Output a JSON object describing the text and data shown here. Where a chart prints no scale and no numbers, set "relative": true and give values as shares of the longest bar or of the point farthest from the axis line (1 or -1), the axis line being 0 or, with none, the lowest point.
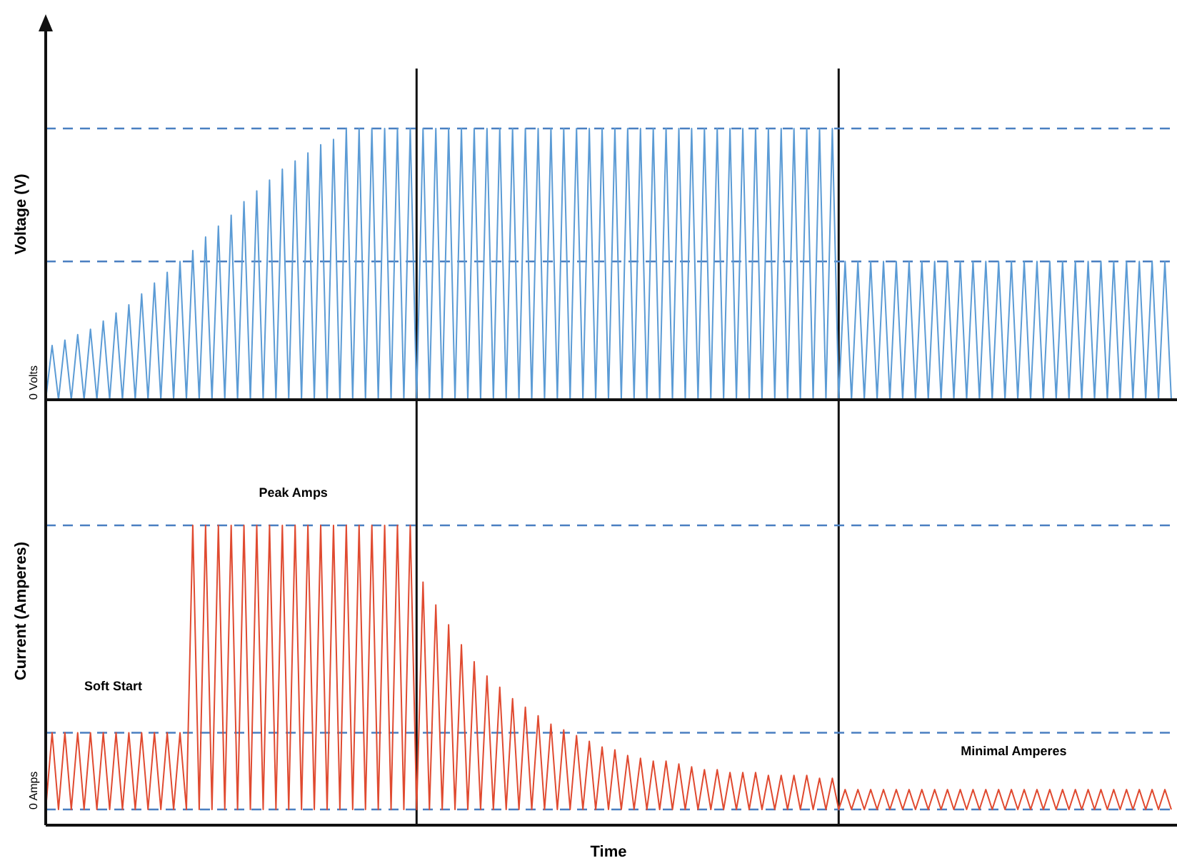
{
  "chart_data": [
    {
      "type": "line",
      "ylabel": "Voltage (V)",
      "relative": true,
      "categories": [
        null,
        null,
        null,
        null,
        null,
        null,
        null,
        null,
        null,
        null,
        null,
        null,
        null,
        null,
        null,
        null,
        null,
        null,
        null,
        null,
        null,
        null,
        null,
        null,
        null,
        null,
        null,
        null,
        null,
        null,
        null,
        null,
        null,
        null,
        null,
        null,
        null,
        null,
        null,
        null,
        null,
        null,
        null,
        null,
        null,
        null,
        null,
        null,
        null,
        null,
        null,
        null,
        null,
        null,
        null,
        null,
        null,
        null,
        null,
        null,
        null,
        null,
        null,
        null,
        null,
        null,
        null,
        null,
        null,
        null,
        null,
        null,
        null,
        null,
        null,
        null,
        null,
        null,
        null,
        null,
        null,
        null,
        null,
        null,
        null,
        null,
        null,
        null,
        null,
        null,
        null,
        null,
        null,
        null,
        null,
        null,
        null,
        null,
        null,
        null,
        null,
        null,
        null,
        null,
        null,
        null,
        null,
        null,
        null,
        null,
        null,
        null,
        null,
        null,
        null,
        null,
        null,
        null,
        null,
        null,
        null,
        null,
        null,
        null,
        null,
        null,
        null,
        null,
        null,
        null,
        null,
        null,
        null,
        null,
        null,
        null,
        null,
        null,
        null,
        null,
        null,
        null,
        null,
        null,
        null,
        null,
        null,
        null,
        null,
        null,
        null,
        null,
        null,
        null,
        null,
        null,
        null,
        null,
        null,
        null,
        null,
        null,
        null,
        null,
        null,
        null,
        null,
        null,
        null,
        null,
        null,
        null,
        null,
        null,
        null,
        null,
        null
      ],
      "series": [
        {
          "color": "#5b9bd5",
          "values": [
            0,
            0.2,
            0,
            0.22,
            0,
            0.24,
            0,
            0.26,
            0,
            0.29,
            0,
            0.32,
            0,
            0.35,
            0,
            0.39,
            0,
            0.43,
            0,
            0.47,
            0,
            0.51,
            0,
            0.55,
            0,
            0.6,
            0,
            0.64,
            0,
            0.68,
            0,
            0.73,
            0,
            0.77,
            0,
            0.81,
            0,
            0.85,
            0,
            0.88,
            0,
            0.91,
            0,
            0.94,
            0,
            0.96,
            0,
            1,
            0,
            1,
            0,
            1,
            0,
            1,
            0,
            1,
            0,
            1,
            0,
            1,
            0,
            1,
            0,
            1,
            0,
            1,
            0,
            1,
            0,
            1,
            0,
            1,
            0,
            1,
            0,
            1,
            0,
            1,
            0,
            1,
            0,
            1,
            0,
            1,
            0,
            1,
            0,
            1,
            0,
            1,
            0,
            1,
            0,
            1,
            0,
            1,
            0,
            1,
            0,
            1,
            0,
            1,
            0,
            1,
            0,
            1,
            0,
            1,
            0,
            1,
            0,
            1,
            0,
            1,
            0,
            1,
            0,
            1,
            0,
            1,
            0,
            1,
            0,
            1,
            0,
            0.51,
            0,
            0.51,
            0,
            0.51,
            0,
            0.51,
            0,
            0.51,
            0,
            0.51,
            0,
            0.51,
            0,
            0.51,
            0,
            0.51,
            0,
            0.51,
            0,
            0.51,
            0,
            0.51,
            0,
            0.51,
            0,
            0.51,
            0,
            0.51,
            0,
            0.51,
            0,
            0.51,
            0,
            0.51,
            0,
            0.51,
            0,
            0.51,
            0,
            0.51,
            0,
            0.51,
            0,
            0.51,
            0,
            0.51,
            0,
            0.51,
            0,
            0.51,
            0
          ]
        }
      ],
      "ref_lines": [
        {
          "axis": "y",
          "value": 1,
          "color": "#4a7fc1",
          "line_style": "dashed"
        },
        {
          "axis": "y",
          "value": 0.51,
          "color": "#4a7fc1",
          "line_style": "dashed"
        }
      ],
      "annotations": [
        "0 Volts"
      ]
    },
    {
      "type": "line",
      "ylabel": "Current (Amperes)",
      "xlabel": "Time",
      "relative": true,
      "categories": [
        null,
        null,
        null,
        null,
        null,
        null,
        null,
        null,
        null,
        null,
        null,
        null,
        null,
        null,
        null,
        null,
        null,
        null,
        null,
        null,
        null,
        null,
        null,
        null,
        null,
        null,
        null,
        null,
        null,
        null,
        null,
        null,
        null,
        null,
        null,
        null,
        null,
        null,
        null,
        null,
        null,
        null,
        null,
        null,
        null,
        null,
        null,
        null,
        null,
        null,
        null,
        null,
        null,
        null,
        null,
        null,
        null,
        null,
        null,
        null,
        null,
        null,
        null,
        null,
        null,
        null,
        null,
        null,
        null,
        null,
        null,
        null,
        null,
        null,
        null,
        null,
        null,
        null,
        null,
        null,
        null,
        null,
        null,
        null,
        null,
        null,
        null,
        null,
        null,
        null,
        null,
        null,
        null,
        null,
        null,
        null,
        null,
        null,
        null,
        null,
        null,
        null,
        null,
        null,
        null,
        null,
        null,
        null,
        null,
        null,
        null,
        null,
        null,
        null,
        null,
        null,
        null,
        null,
        null,
        null,
        null,
        null,
        null,
        null,
        null,
        null,
        null,
        null,
        null,
        null,
        null,
        null,
        null,
        null,
        null,
        null,
        null,
        null,
        null,
        null,
        null,
        null,
        null,
        null,
        null,
        null,
        null,
        null,
        null,
        null,
        null,
        null,
        null,
        null,
        null,
        null,
        null,
        null,
        null,
        null,
        null,
        null,
        null,
        null,
        null,
        null,
        null,
        null,
        null,
        null,
        null,
        null,
        null,
        null,
        null,
        null,
        null
      ],
      "series": [
        {
          "color": "#e04a30",
          "values": [
            0,
            0.27,
            0,
            0.27,
            0,
            0.27,
            0,
            0.27,
            0,
            0.27,
            0,
            0.27,
            0,
            0.27,
            0,
            0.27,
            0,
            0.27,
            0,
            0.27,
            0,
            0.27,
            0,
            1,
            0,
            1,
            0,
            1,
            0,
            1,
            0,
            1,
            0,
            1,
            0,
            1,
            0,
            1,
            0,
            1,
            0,
            1,
            0,
            1,
            0,
            1,
            0,
            1,
            0,
            1,
            0,
            1,
            0,
            1,
            0,
            1,
            0,
            1,
            0,
            0.8,
            0,
            0.72,
            0,
            0.65,
            0,
            0.58,
            0,
            0.52,
            0,
            0.47,
            0,
            0.43,
            0,
            0.39,
            0,
            0.36,
            0,
            0.33,
            0,
            0.3,
            0,
            0.28,
            0,
            0.26,
            0,
            0.24,
            0,
            0.22,
            0,
            0.21,
            0,
            0.19,
            0,
            0.18,
            0,
            0.17,
            0,
            0.17,
            0,
            0.16,
            0,
            0.15,
            0,
            0.14,
            0,
            0.14,
            0,
            0.13,
            0,
            0.13,
            0,
            0.13,
            0,
            0.12,
            0,
            0.12,
            0,
            0.12,
            0,
            0.12,
            0,
            0.11,
            0,
            0.11,
            0,
            0.07,
            0,
            0.07,
            0,
            0.07,
            0,
            0.07,
            0,
            0.07,
            0,
            0.07,
            0,
            0.07,
            0,
            0.07,
            0,
            0.07,
            0,
            0.07,
            0,
            0.07,
            0,
            0.07,
            0,
            0.07,
            0,
            0.07,
            0,
            0.07,
            0,
            0.07,
            0,
            0.07,
            0,
            0.07,
            0,
            0.07,
            0,
            0.07,
            0,
            0.07,
            0,
            0.07,
            0,
            0.07,
            0,
            0.07,
            0,
            0.07,
            0,
            0.07,
            0
          ]
        }
      ],
      "ref_lines": [
        {
          "axis": "y",
          "value": 1,
          "color": "#4a7fc1",
          "line_style": "dashed"
        },
        {
          "axis": "y",
          "value": 0.27,
          "color": "#4a7fc1",
          "line_style": "dashed"
        },
        {
          "axis": "y",
          "value": 0,
          "color": "#4a7fc1",
          "line_style": "dashed"
        }
      ],
      "annotations": [
        "Soft Start",
        "Peak Amps",
        "Minimal Amperes",
        "0 Amps"
      ]
    }
  ]
}
